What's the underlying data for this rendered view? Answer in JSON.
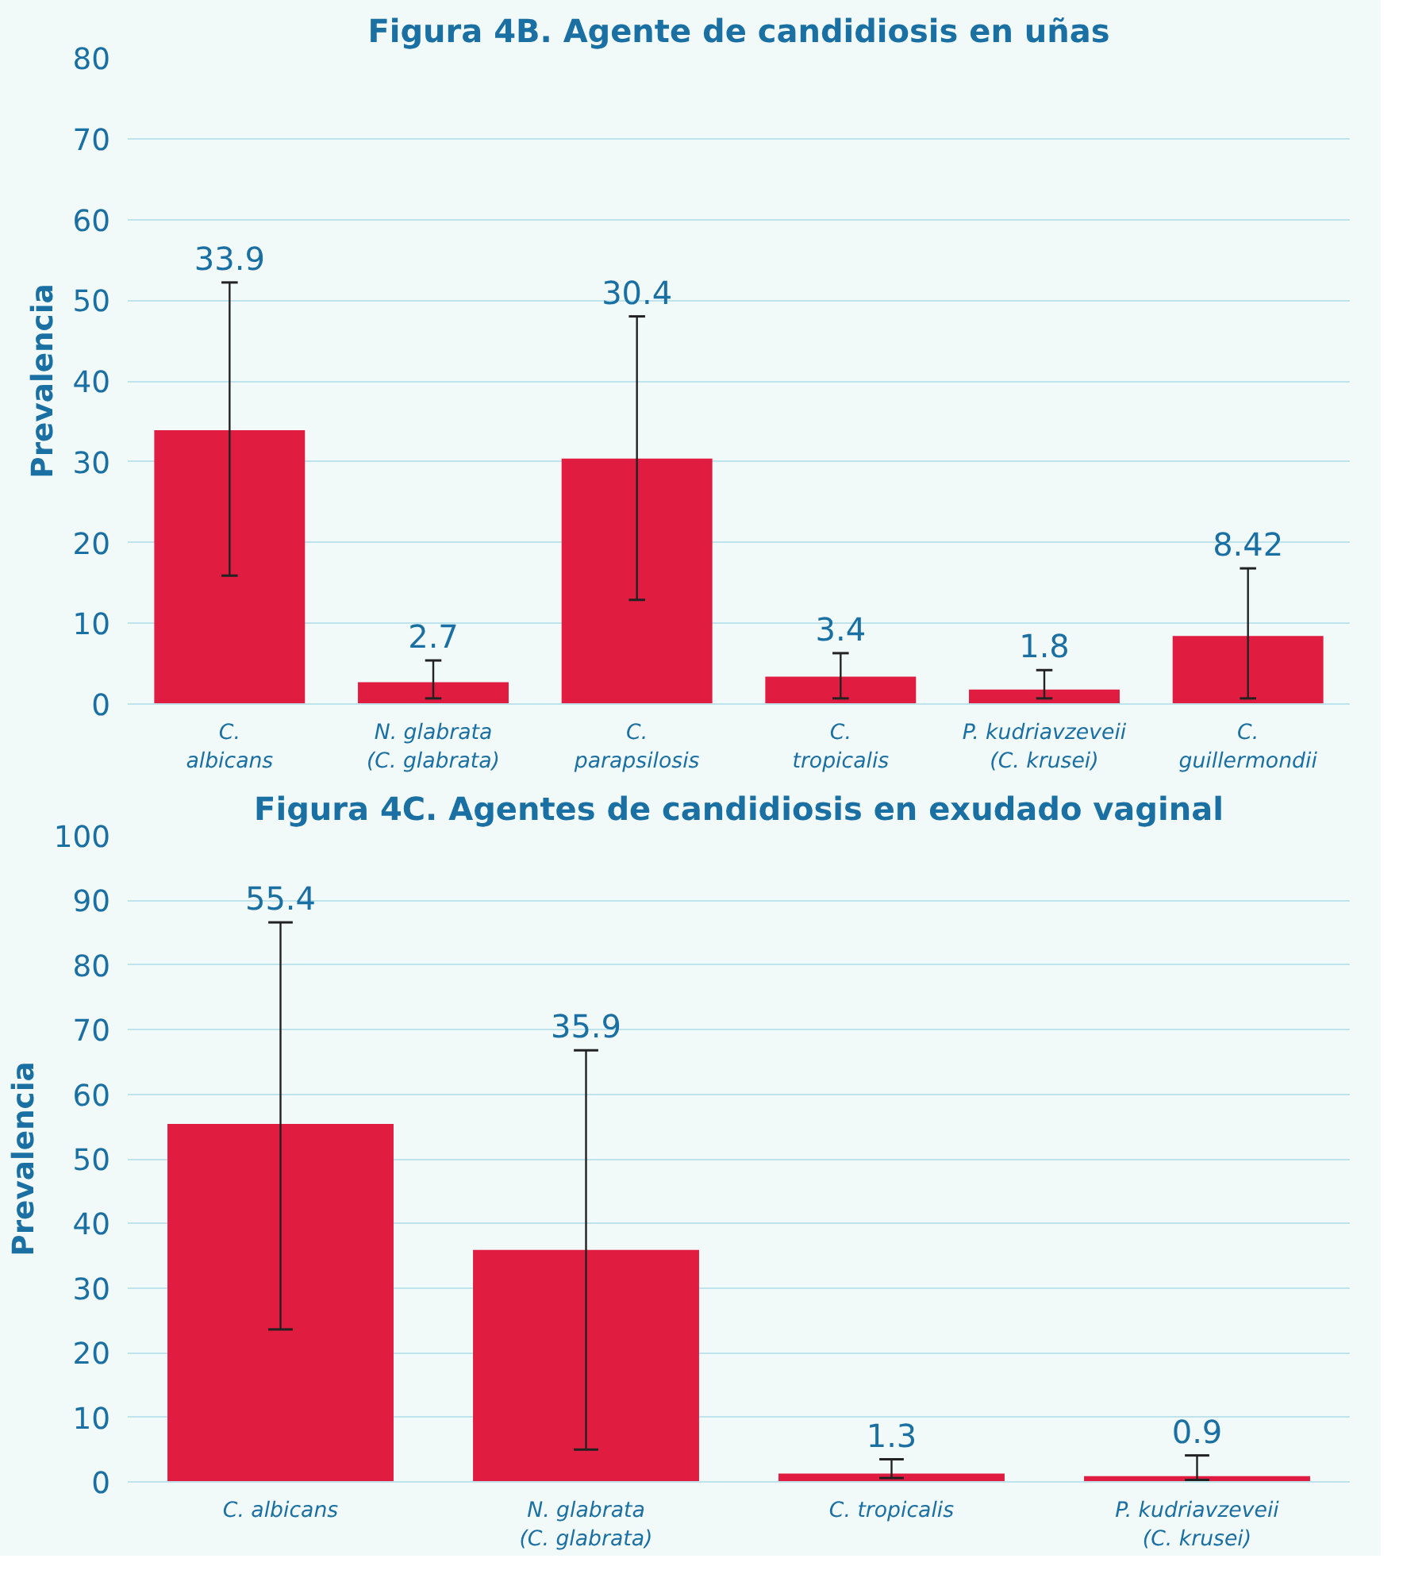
{
  "chart_data": [
    {
      "type": "bar",
      "title": "Figura 4B. Agente de candidiosis en uñas",
      "ylabel": "Prevalencia",
      "categories": [
        "C.\nalbicans",
        "N. glabrata\n(C. glabrata)",
        "C.\nparapsilosis",
        "C.\ntropicalis",
        "P. kudriavzeveii\n(C. krusei)",
        "C.\nguillermondii"
      ],
      "values": [
        33.9,
        2.7,
        30.4,
        3.4,
        1.8,
        8.42
      ],
      "color": "#e01d40",
      "errors": [
        [
          15.9,
          52.2
        ],
        [
          0.7,
          5.4
        ],
        [
          12.9,
          48.0
        ],
        [
          0.7,
          6.3
        ],
        [
          0.7,
          4.2
        ],
        [
          0.7,
          16.8
        ]
      ],
      "annotations": [
        {
          "text": "33.9",
          "x": "C.\nalbicans",
          "y": 52.2
        },
        {
          "text": "2.7",
          "x": "N. glabrata\n(C. glabrata)",
          "y": 5.4
        },
        {
          "text": "30.4",
          "x": "C.\nparapsilosis",
          "y": 48.0
        },
        {
          "text": "3.4",
          "x": "C.\ntropicalis",
          "y": 6.3
        },
        {
          "text": "1.8",
          "x": "P. kudriavzeveii\n(C. krusei)",
          "y": 4.2
        },
        {
          "text": "8.42",
          "x": "C.\nguillermondii",
          "y": 16.8
        }
      ],
      "ylim": [
        0,
        80
      ],
      "yticks": [
        0,
        10,
        20,
        30,
        40,
        50,
        60,
        70,
        80
      ],
      "grid": "y"
    },
    {
      "type": "bar",
      "title": "Figura 4C. Agentes de candidiosis en exudado vaginal",
      "ylabel": "Prevalencia",
      "categories": [
        "C. albicans",
        "N. glabrata\n(C. glabrata)",
        "C. tropicalis",
        "P. kudriavzeveii\n(C. krusei)"
      ],
      "values": [
        55.4,
        35.9,
        1.3,
        0.9
      ],
      "color": "#e01d40",
      "errors": [
        [
          23.6,
          86.6
        ],
        [
          5.0,
          66.8
        ],
        [
          0.6,
          3.5
        ],
        [
          0.3,
          4.1
        ]
      ],
      "annotations": [
        {
          "text": "55.4",
          "x": "C. albicans",
          "y": 86.6
        },
        {
          "text": "35.9",
          "x": "N. glabrata\n(C. glabrata)",
          "y": 66.8
        },
        {
          "text": "1.3",
          "x": "C. tropicalis",
          "y": 3.5
        },
        {
          "text": "0.9",
          "x": "P. kudriavzeveii\n(C. krusei)",
          "y": 4.1
        }
      ],
      "ylim": [
        0,
        100
      ],
      "yticks": [
        0,
        10,
        20,
        30,
        40,
        50,
        60,
        70,
        80,
        90,
        100
      ],
      "grid": "y"
    }
  ]
}
